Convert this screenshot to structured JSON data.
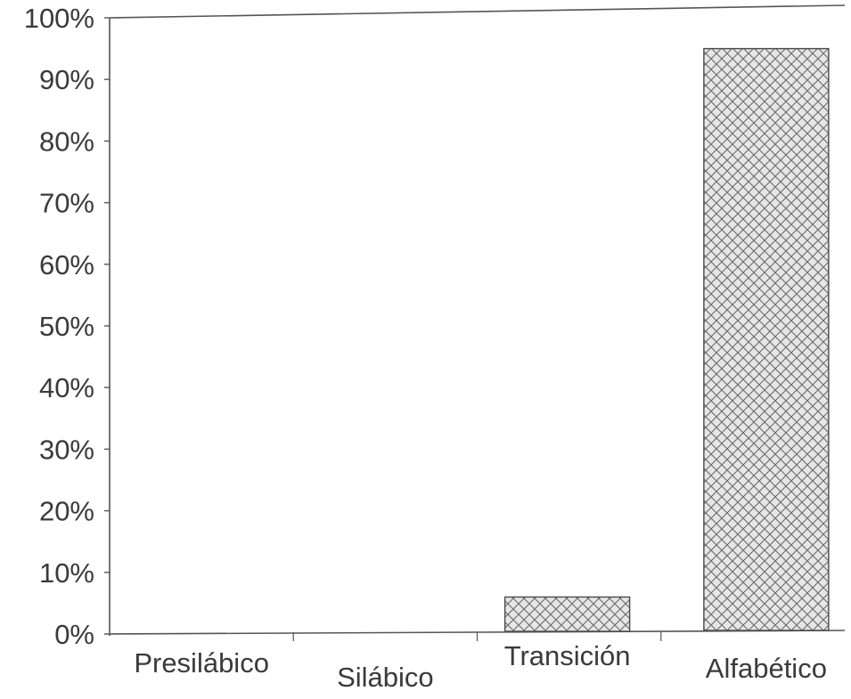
{
  "chart_data": {
    "type": "bar",
    "title": "",
    "xlabel": "",
    "ylabel": "",
    "categories": [
      "Presilábico",
      "Silábico",
      "Transición",
      "Alfabético"
    ],
    "values": [
      0,
      0,
      6,
      95
    ],
    "ylim": [
      0,
      100
    ],
    "yticks": [
      "0%",
      "10%",
      "20%",
      "30%",
      "40%",
      "50%",
      "60%",
      "70%",
      "80%",
      "90%",
      "100%"
    ],
    "grid": false,
    "legend": "none",
    "bar_color": "#b8b8b8",
    "bar_pattern": "crosshatch",
    "axis_color": "#555555"
  }
}
